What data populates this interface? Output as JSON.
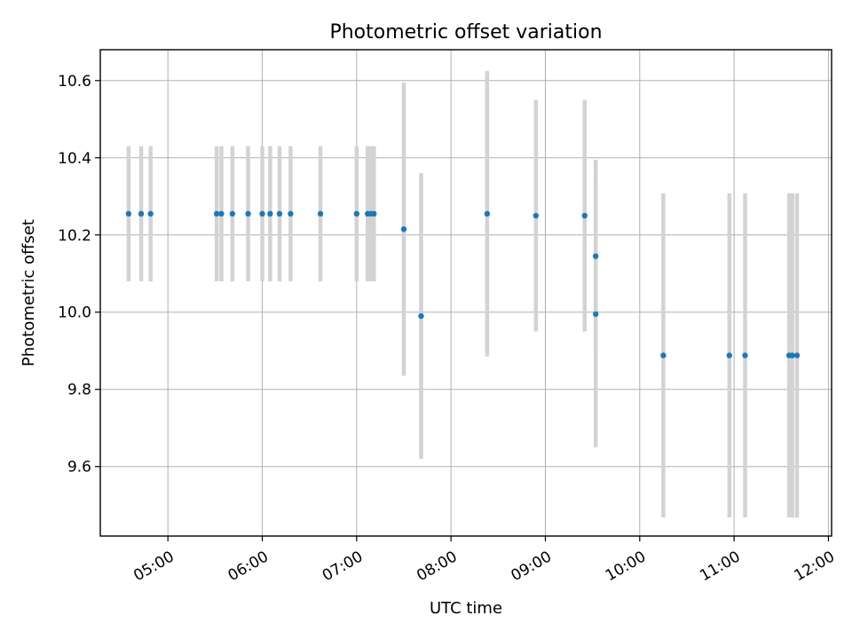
{
  "chart_data": {
    "type": "scatter",
    "title": "Photometric offset variation",
    "xlabel": "UTC time",
    "ylabel": "Photometric offset",
    "x_ticks": [
      "05:00",
      "06:00",
      "07:00",
      "08:00",
      "09:00",
      "10:00",
      "11:00",
      "12:00"
    ],
    "y_ticks": [
      "9.6",
      "9.8",
      "10.0",
      "10.2",
      "10.4",
      "10.6"
    ],
    "xlim": [
      "04:17",
      "12:02"
    ],
    "ylim": [
      9.42,
      10.68
    ],
    "grid": true,
    "marker_color": "#1f77b4",
    "errorbar_color": "#d3d3d3",
    "points": [
      {
        "x": "04:35",
        "y": 10.255,
        "err": 0.175
      },
      {
        "x": "04:43",
        "y": 10.255,
        "err": 0.175
      },
      {
        "x": "04:49",
        "y": 10.255,
        "err": 0.175
      },
      {
        "x": "05:31",
        "y": 10.255,
        "err": 0.175
      },
      {
        "x": "05:34",
        "y": 10.255,
        "err": 0.175
      },
      {
        "x": "05:41",
        "y": 10.255,
        "err": 0.175
      },
      {
        "x": "05:51",
        "y": 10.255,
        "err": 0.175
      },
      {
        "x": "06:00",
        "y": 10.255,
        "err": 0.175
      },
      {
        "x": "06:05",
        "y": 10.255,
        "err": 0.175
      },
      {
        "x": "06:11",
        "y": 10.255,
        "err": 0.175
      },
      {
        "x": "06:18",
        "y": 10.255,
        "err": 0.175
      },
      {
        "x": "06:37",
        "y": 10.255,
        "err": 0.175
      },
      {
        "x": "07:00",
        "y": 10.255,
        "err": 0.175
      },
      {
        "x": "07:07",
        "y": 10.255,
        "err": 0.175
      },
      {
        "x": "07:09",
        "y": 10.255,
        "err": 0.175
      },
      {
        "x": "07:11",
        "y": 10.255,
        "err": 0.175
      },
      {
        "x": "07:30",
        "y": 10.215,
        "err": 0.38
      },
      {
        "x": "07:41",
        "y": 9.99,
        "err": 0.37
      },
      {
        "x": "08:23",
        "y": 10.255,
        "err": 0.37
      },
      {
        "x": "08:54",
        "y": 10.25,
        "err": 0.3
      },
      {
        "x": "09:25",
        "y": 10.25,
        "err": 0.3
      },
      {
        "x": "09:32",
        "y": 10.145,
        "err": 0.25
      },
      {
        "x": "09:32",
        "y": 9.995,
        "err": 0.345
      },
      {
        "x": "10:15",
        "y": 9.888,
        "err": 0.42
      },
      {
        "x": "10:57",
        "y": 9.888,
        "err": 0.42
      },
      {
        "x": "11:07",
        "y": 9.888,
        "err": 0.42
      },
      {
        "x": "11:35",
        "y": 9.888,
        "err": 0.42
      },
      {
        "x": "11:37",
        "y": 9.888,
        "err": 0.42
      },
      {
        "x": "11:40",
        "y": 9.888,
        "err": 0.42
      }
    ]
  }
}
